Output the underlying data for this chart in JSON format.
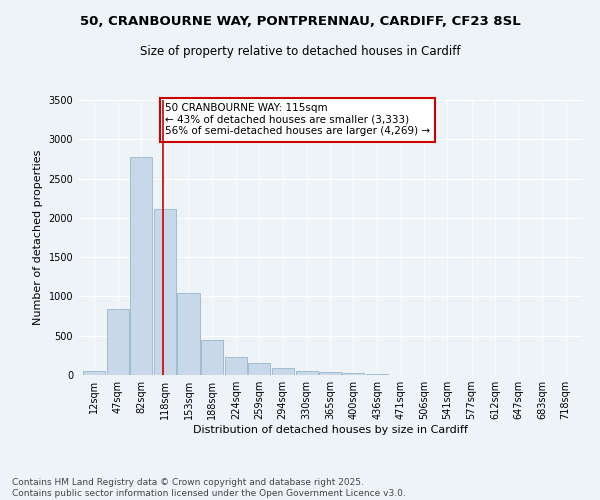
{
  "title_line1": "50, CRANBOURNE WAY, PONTPRENNAU, CARDIFF, CF23 8SL",
  "title_line2": "Size of property relative to detached houses in Cardiff",
  "xlabel": "Distribution of detached houses by size in Cardiff",
  "ylabel": "Number of detached properties",
  "bar_color": "#c8d8e8",
  "bar_edgecolor": "#a0bcd0",
  "vline_x": 115,
  "vline_color": "#cc0000",
  "categories": [
    "12sqm",
    "47sqm",
    "82sqm",
    "118sqm",
    "153sqm",
    "188sqm",
    "224sqm",
    "259sqm",
    "294sqm",
    "330sqm",
    "365sqm",
    "400sqm",
    "436sqm",
    "471sqm",
    "506sqm",
    "541sqm",
    "577sqm",
    "612sqm",
    "647sqm",
    "683sqm",
    "718sqm"
  ],
  "bin_edges": [
    12,
    47,
    82,
    118,
    153,
    188,
    224,
    259,
    294,
    330,
    365,
    400,
    436,
    471,
    506,
    541,
    577,
    612,
    647,
    683,
    718
  ],
  "values": [
    55,
    840,
    2770,
    2110,
    1040,
    450,
    235,
    155,
    85,
    55,
    40,
    30,
    10,
    5,
    5,
    0,
    0,
    0,
    0,
    0,
    0
  ],
  "ylim": [
    0,
    3500
  ],
  "yticks": [
    0,
    500,
    1000,
    1500,
    2000,
    2500,
    3000,
    3500
  ],
  "annotation_text": "50 CRANBOURNE WAY: 115sqm\n← 43% of detached houses are smaller (3,333)\n56% of semi-detached houses are larger (4,269) →",
  "annotation_box_color": "#ffffff",
  "annotation_box_edgecolor": "#cc0000",
  "footer_line1": "Contains HM Land Registry data © Crown copyright and database right 2025.",
  "footer_line2": "Contains public sector information licensed under the Open Government Licence v3.0.",
  "background_color": "#eef3f8",
  "grid_color": "#ffffff",
  "title_fontsize": 9.5,
  "subtitle_fontsize": 8.5,
  "axis_label_fontsize": 8,
  "tick_fontsize": 7,
  "annotation_fontsize": 7.5,
  "footer_fontsize": 6.5
}
